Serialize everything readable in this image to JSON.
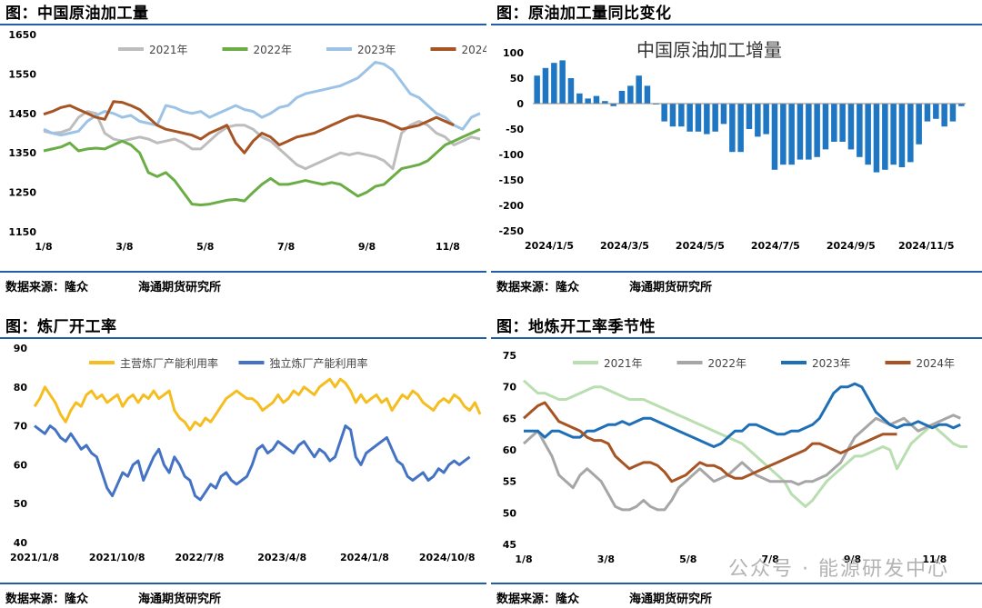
{
  "panels": {
    "p1": {
      "title": "图：中国原油加工量",
      "source": "数据来源：隆众",
      "org": "海通期货研究所"
    },
    "p2": {
      "title": "图：原油加工量同比变化",
      "source": "数据来源：隆众",
      "org": "海通期货研究所"
    },
    "p3": {
      "title": "图：炼厂开工率",
      "source": "数据来源：隆众",
      "org": "海通期货研究所"
    },
    "p4": {
      "title": "图：地炼开工率季节性",
      "source": "数据来源：隆众",
      "org": "海通期货研究所"
    }
  },
  "watermark": "公众号 · 能源研发中心",
  "chart_data": [
    {
      "type": "line",
      "title": "",
      "x_ticks": [
        "1/8",
        "3/8",
        "5/8",
        "7/8",
        "9/8",
        "11/8"
      ],
      "ylim": [
        1150,
        1650
      ],
      "yticks": [
        1150,
        1250,
        1350,
        1450,
        1550,
        1650
      ],
      "legend": "top",
      "series": [
        {
          "name": "2021年",
          "color": "#bdbdbd",
          "values": [
            1405,
            1400,
            1402,
            1410,
            1440,
            1455,
            1450,
            1400,
            1385,
            1380,
            1385,
            1390,
            1385,
            1375,
            1380,
            1385,
            1375,
            1360,
            1360,
            1380,
            1400,
            1415,
            1420,
            1420,
            1410,
            1390,
            1380,
            1360,
            1340,
            1320,
            1310,
            1320,
            1330,
            1340,
            1350,
            1345,
            1350,
            1345,
            1340,
            1330,
            1310,
            1400,
            1420,
            1430,
            1420,
            1400,
            1390,
            1370,
            1380,
            1390,
            1385
          ]
        },
        {
          "name": "2022年",
          "color": "#6aad45",
          "values": [
            1355,
            1360,
            1365,
            1375,
            1355,
            1360,
            1362,
            1360,
            1370,
            1380,
            1370,
            1350,
            1300,
            1290,
            1300,
            1280,
            1250,
            1220,
            1218,
            1220,
            1225,
            1230,
            1232,
            1228,
            1250,
            1270,
            1285,
            1270,
            1270,
            1275,
            1280,
            1275,
            1270,
            1275,
            1270,
            1255,
            1240,
            1250,
            1265,
            1270,
            1290,
            1310,
            1315,
            1320,
            1330,
            1350,
            1370,
            1380,
            1390,
            1400,
            1410
          ]
        },
        {
          "name": "2023年",
          "color": "#9cc3e6",
          "values": [
            1410,
            1400,
            1395,
            1400,
            1405,
            1430,
            1445,
            1455,
            1450,
            1440,
            1445,
            1430,
            1425,
            1420,
            1470,
            1465,
            1455,
            1450,
            1455,
            1440,
            1450,
            1460,
            1470,
            1460,
            1455,
            1440,
            1450,
            1465,
            1470,
            1490,
            1500,
            1505,
            1510,
            1515,
            1520,
            1530,
            1540,
            1560,
            1580,
            1575,
            1560,
            1530,
            1500,
            1490,
            1470,
            1450,
            1440,
            1420,
            1410,
            1440,
            1450
          ]
        },
        {
          "name": "2024",
          "color": "#a65424",
          "values": [
            1448,
            1455,
            1465,
            1470,
            1460,
            1450,
            1440,
            1435,
            1480,
            1478,
            1470,
            1460,
            1440,
            1420,
            1410,
            1405,
            1400,
            1395,
            1385,
            1400,
            1410,
            1420,
            1375,
            1350,
            1380,
            1400,
            1390,
            1370,
            1380,
            1390,
            1395,
            1400,
            1410,
            1420,
            1430,
            1440,
            1445,
            1440,
            1435,
            1430,
            1420,
            1410,
            1415,
            1420,
            1430,
            1440,
            1430,
            1420
          ]
        }
      ]
    },
    {
      "type": "bar",
      "title": "中国原油加工增量",
      "x_ticks": [
        "2024/1/5",
        "2024/3/5",
        "2024/5/5",
        "2024/7/5",
        "2024/9/5",
        "2024/11/5"
      ],
      "ylim": [
        -250,
        100
      ],
      "yticks": [
        100,
        50,
        0,
        -50,
        -100,
        -150,
        -200,
        -250
      ],
      "color": "#1f77c4",
      "values": [
        55,
        70,
        80,
        85,
        50,
        20,
        10,
        15,
        5,
        -5,
        25,
        35,
        55,
        35,
        0,
        -35,
        -45,
        -45,
        -55,
        -55,
        -60,
        -55,
        -40,
        -95,
        -95,
        -50,
        -65,
        -60,
        -130,
        -120,
        -120,
        -110,
        -110,
        -105,
        -90,
        -75,
        -75,
        -90,
        -105,
        -120,
        -135,
        -130,
        -120,
        -125,
        -115,
        -80,
        -35,
        -30,
        -45,
        -35,
        -5
      ]
    },
    {
      "type": "line",
      "title": "",
      "x_ticks": [
        "2021/1/8",
        "2021/10/8",
        "2022/7/8",
        "2023/4/8",
        "2024/1/8",
        "2024/10/8"
      ],
      "ylim": [
        40,
        90
      ],
      "yticks": [
        40,
        50,
        60,
        70,
        80,
        90
      ],
      "legend": "top",
      "series": [
        {
          "name": "主营炼厂产能利用率",
          "color": "#f5bd1f",
          "values": [
            75,
            77,
            80,
            78,
            76,
            73,
            71,
            74,
            76,
            75,
            78,
            79,
            77,
            78,
            76,
            77,
            78,
            75,
            77,
            78,
            76,
            78,
            77,
            79,
            77,
            78,
            79,
            74,
            72,
            71,
            69,
            71,
            70,
            72,
            71,
            73,
            75,
            77,
            78,
            79,
            78,
            77,
            77,
            76,
            74,
            75,
            76,
            78,
            76,
            77,
            79,
            78,
            80,
            79,
            78,
            80,
            81,
            82,
            80,
            82,
            81,
            79,
            76,
            78,
            76,
            77,
            78,
            76,
            77,
            74,
            76,
            78,
            77,
            79,
            78,
            76,
            75,
            74,
            76,
            77,
            76,
            78,
            77,
            75,
            74,
            76,
            73
          ]
        },
        {
          "name": "独立炼厂产能利用率",
          "color": "#4472c4",
          "values": [
            70,
            69,
            68,
            70,
            69,
            67,
            66,
            68,
            66,
            64,
            65,
            63,
            62,
            58,
            54,
            52,
            55,
            58,
            57,
            60,
            61,
            56,
            59,
            62,
            64,
            60,
            58,
            62,
            60,
            57,
            56,
            52,
            51,
            53,
            55,
            54,
            57,
            58,
            56,
            55,
            56,
            57,
            60,
            64,
            65,
            63,
            64,
            66,
            65,
            64,
            63,
            65,
            66,
            64,
            62,
            64,
            63,
            61,
            62,
            66,
            70,
            69,
            62,
            60,
            63,
            64,
            65,
            66,
            67,
            64,
            61,
            60,
            57,
            56,
            57,
            58,
            56,
            57,
            59,
            58,
            60,
            61,
            60,
            61,
            62
          ]
        }
      ]
    },
    {
      "type": "line",
      "title": "",
      "x_ticks": [
        "1/8",
        "3/8",
        "5/8",
        "7/8",
        "9/8",
        "11/8"
      ],
      "ylim": [
        45,
        75
      ],
      "yticks": [
        45,
        50,
        55,
        60,
        65,
        70,
        75
      ],
      "legend": "top",
      "series": [
        {
          "name": "2021年",
          "color": "#b9deb0",
          "values": [
            71,
            70,
            69,
            69,
            68.5,
            68,
            68,
            68.5,
            69,
            69.5,
            70,
            70,
            69.5,
            69,
            68.5,
            68,
            68,
            68,
            67.5,
            67,
            66.5,
            66,
            65.5,
            65,
            64.5,
            64,
            63.5,
            63,
            62.5,
            62,
            61.5,
            61,
            60,
            59,
            58,
            57,
            56,
            55,
            53,
            52,
            51,
            52,
            53.5,
            55,
            56,
            57,
            58,
            59,
            59,
            59.5,
            60,
            60.5,
            60,
            57,
            59,
            61,
            62,
            63,
            64,
            63,
            62,
            61,
            60.5,
            60.5
          ]
        },
        {
          "name": "2022年",
          "color": "#a6a6a6",
          "values": [
            61,
            62,
            63,
            61,
            59,
            56,
            55,
            54,
            56,
            57,
            56,
            55,
            53,
            51,
            50.5,
            50.5,
            51,
            52,
            51,
            50.5,
            50.5,
            52,
            54,
            55,
            56,
            57,
            56,
            55,
            55.5,
            56,
            57,
            58,
            57,
            56,
            55.5,
            55,
            55,
            55,
            55,
            54.5,
            55,
            55,
            55.5,
            56,
            57,
            58,
            60,
            62,
            63,
            64,
            65,
            64.5,
            64,
            64.5,
            65,
            64,
            63,
            63.5,
            64,
            64.5,
            65,
            65.5,
            65
          ]
        },
        {
          "name": "2023年",
          "color": "#1f6fb7",
          "values": [
            63,
            63,
            63,
            62,
            63,
            63,
            62.5,
            62,
            62,
            63,
            63,
            63.5,
            64,
            64,
            64.5,
            64,
            64.5,
            65,
            65,
            64.5,
            64,
            63.5,
            63,
            62.5,
            62,
            61.5,
            61,
            60.5,
            61,
            62,
            63,
            63,
            64,
            64,
            63.5,
            63,
            62.5,
            62.5,
            63,
            63,
            63.5,
            64,
            65,
            67,
            69,
            70,
            70,
            70.5,
            70,
            68,
            66,
            65,
            64,
            63.5,
            64,
            64,
            64.5,
            64,
            63.5,
            64,
            64,
            63.5,
            64
          ]
        },
        {
          "name": "2024年",
          "color": "#a65424",
          "values": [
            65,
            66,
            67,
            67.5,
            66,
            64.5,
            64,
            63.5,
            63,
            62,
            61.5,
            61.5,
            61,
            59,
            58,
            57,
            57.5,
            58,
            58,
            57.5,
            56.5,
            55,
            55.5,
            56,
            57,
            58,
            57.5,
            57.5,
            57,
            56,
            55.5,
            55.5,
            56,
            56.5,
            57,
            57.5,
            58,
            58.5,
            59,
            59.5,
            60,
            61,
            61,
            60.5,
            60,
            59.5,
            60,
            60.5,
            61,
            61.5,
            62,
            62.5,
            62.5,
            62.5
          ]
        }
      ]
    }
  ]
}
